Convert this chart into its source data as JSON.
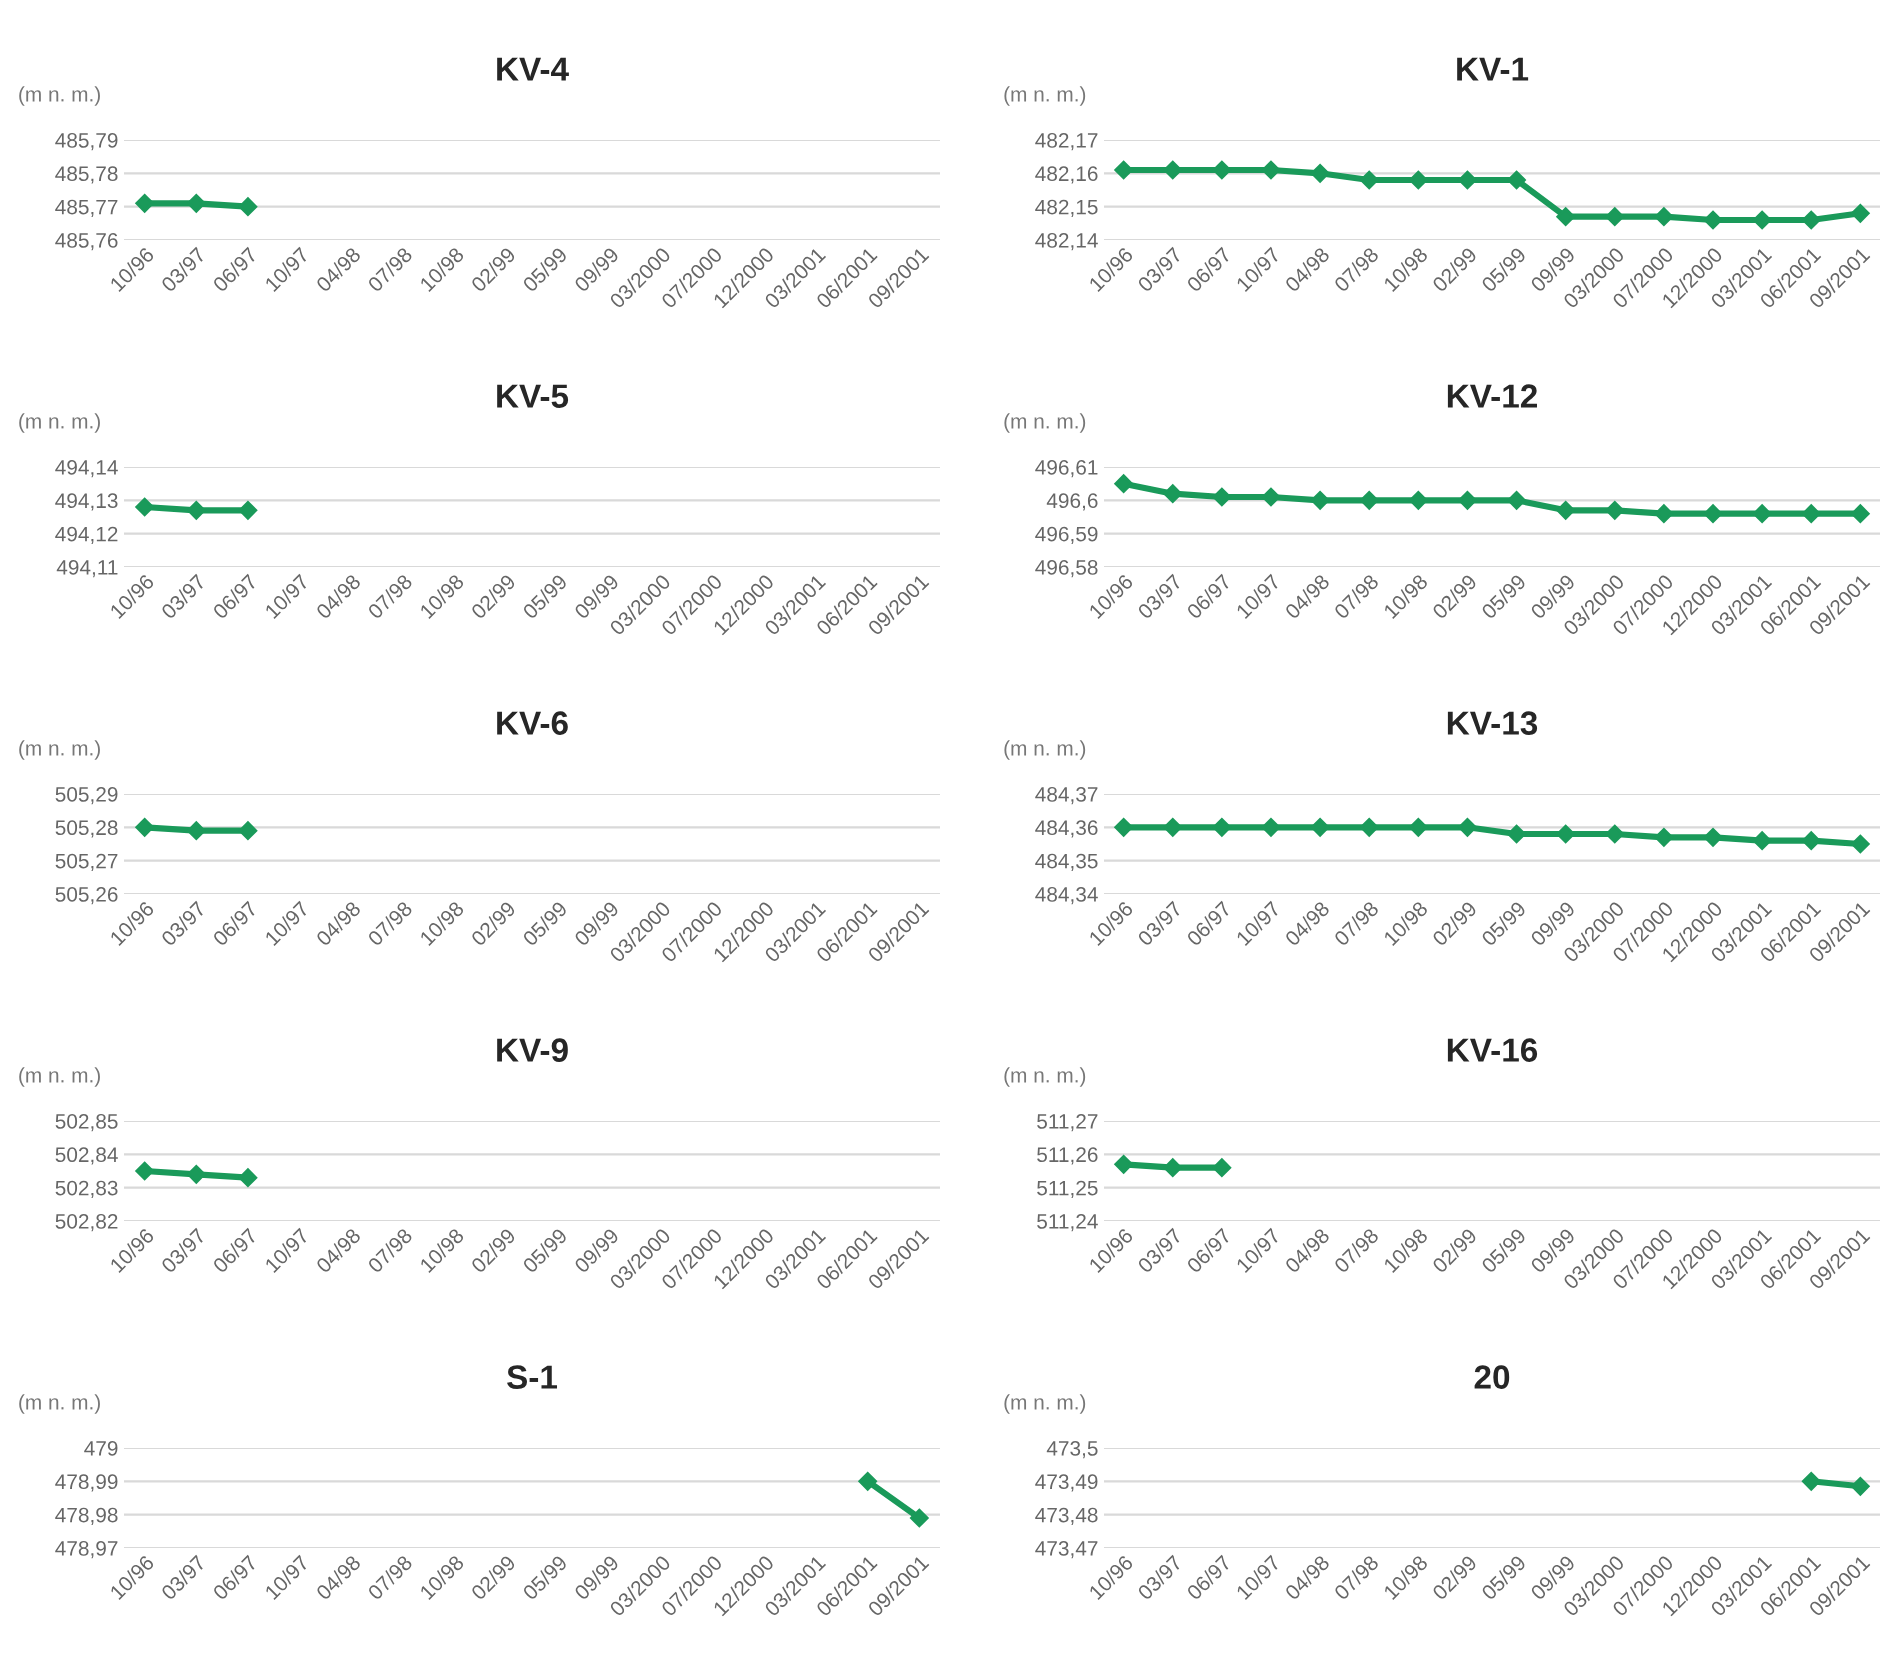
{
  "chart_data": [
    {
      "type": "line",
      "title": "KV-4",
      "ylabel": "(m n. m.)",
      "categories": [
        "10/96",
        "03/97",
        "06/97",
        "10/97",
        "04/98",
        "07/98",
        "10/98",
        "02/99",
        "05/99",
        "09/99",
        "03/2000",
        "07/2000",
        "12/2000",
        "03/2001",
        "06/2001",
        "09/2001"
      ],
      "series": [
        {
          "color": "#1a9a5a",
          "values": [
            485.771,
            485.771,
            485.77,
            null,
            null,
            null,
            null,
            null,
            null,
            null,
            null,
            null,
            null,
            null,
            null,
            null
          ]
        }
      ],
      "ylim": [
        485.76,
        485.79
      ],
      "yticks": [
        {
          "value": 485.76,
          "label": "485,76"
        },
        {
          "value": 485.77,
          "label": "485,77"
        },
        {
          "value": 485.78,
          "label": "485,78"
        },
        {
          "value": 485.79,
          "label": "485,79"
        }
      ],
      "grid": "y",
      "marker": "diamond",
      "line_style": "solid"
    },
    {
      "type": "line",
      "title": "KV-1",
      "ylabel": "(m n. m.)",
      "categories": [
        "10/96",
        "03/97",
        "06/97",
        "10/97",
        "04/98",
        "07/98",
        "10/98",
        "02/99",
        "05/99",
        "09/99",
        "03/2000",
        "07/2000",
        "12/2000",
        "03/2001",
        "06/2001",
        "09/2001"
      ],
      "series": [
        {
          "color": "#1a9a5a",
          "values": [
            482.161,
            482.161,
            482.161,
            482.161,
            482.16,
            482.158,
            482.158,
            482.158,
            482.158,
            482.147,
            482.147,
            482.147,
            482.146,
            482.146,
            482.146,
            482.148
          ]
        }
      ],
      "ylim": [
        482.14,
        482.17
      ],
      "yticks": [
        {
          "value": 482.14,
          "label": "482,14"
        },
        {
          "value": 482.15,
          "label": "482,15"
        },
        {
          "value": 482.16,
          "label": "482,16"
        },
        {
          "value": 482.17,
          "label": "482,17"
        }
      ],
      "grid": "y",
      "marker": "diamond",
      "line_style": "solid"
    },
    {
      "type": "line",
      "title": "KV-5",
      "ylabel": "(m n. m.)",
      "categories": [
        "10/96",
        "03/97",
        "06/97",
        "10/97",
        "04/98",
        "07/98",
        "10/98",
        "02/99",
        "05/99",
        "09/99",
        "03/2000",
        "07/2000",
        "12/2000",
        "03/2001",
        "06/2001",
        "09/2001"
      ],
      "series": [
        {
          "color": "#1a9a5a",
          "values": [
            494.128,
            494.127,
            494.127,
            null,
            null,
            null,
            null,
            null,
            null,
            null,
            null,
            null,
            null,
            null,
            null,
            null
          ]
        }
      ],
      "ylim": [
        494.11,
        494.14
      ],
      "yticks": [
        {
          "value": 494.11,
          "label": "494,11"
        },
        {
          "value": 494.12,
          "label": "494,12"
        },
        {
          "value": 494.13,
          "label": "494,13"
        },
        {
          "value": 494.14,
          "label": "494,14"
        }
      ],
      "grid": "y",
      "marker": "diamond",
      "line_style": "solid"
    },
    {
      "type": "line",
      "title": "KV-12",
      "ylabel": "(m n. m.)",
      "categories": [
        "10/96",
        "03/97",
        "06/97",
        "10/97",
        "04/98",
        "07/98",
        "10/98",
        "02/99",
        "05/99",
        "09/99",
        "03/2000",
        "07/2000",
        "12/2000",
        "03/2001",
        "06/2001",
        "09/2001"
      ],
      "series": [
        {
          "color": "#1a9a5a",
          "values": [
            496.605,
            496.602,
            496.601,
            496.601,
            496.6,
            496.6,
            496.6,
            496.6,
            496.6,
            496.597,
            496.597,
            496.596,
            496.596,
            496.596,
            496.596,
            496.596
          ]
        }
      ],
      "ylim": [
        496.58,
        496.61
      ],
      "yticks": [
        {
          "value": 496.58,
          "label": "496,58"
        },
        {
          "value": 496.59,
          "label": "496,59"
        },
        {
          "value": 496.6,
          "label": "496,6"
        },
        {
          "value": 496.61,
          "label": "496,61"
        }
      ],
      "grid": "y",
      "marker": "diamond",
      "line_style": "solid"
    },
    {
      "type": "line",
      "title": "KV-6",
      "ylabel": "(m n. m.)",
      "categories": [
        "10/96",
        "03/97",
        "06/97",
        "10/97",
        "04/98",
        "07/98",
        "10/98",
        "02/99",
        "05/99",
        "09/99",
        "03/2000",
        "07/2000",
        "12/2000",
        "03/2001",
        "06/2001",
        "09/2001"
      ],
      "series": [
        {
          "color": "#1a9a5a",
          "values": [
            505.28,
            505.279,
            505.279,
            null,
            null,
            null,
            null,
            null,
            null,
            null,
            null,
            null,
            null,
            null,
            null,
            null
          ]
        }
      ],
      "ylim": [
        505.26,
        505.29
      ],
      "yticks": [
        {
          "value": 505.26,
          "label": "505,26"
        },
        {
          "value": 505.27,
          "label": "505,27"
        },
        {
          "value": 505.28,
          "label": "505,28"
        },
        {
          "value": 505.29,
          "label": "505,29"
        }
      ],
      "grid": "y",
      "marker": "diamond",
      "line_style": "solid"
    },
    {
      "type": "line",
      "title": "KV-13",
      "ylabel": "(m n. m.)",
      "categories": [
        "10/96",
        "03/97",
        "06/97",
        "10/97",
        "04/98",
        "07/98",
        "10/98",
        "02/99",
        "05/99",
        "09/99",
        "03/2000",
        "07/2000",
        "12/2000",
        "03/2001",
        "06/2001",
        "09/2001"
      ],
      "series": [
        {
          "color": "#1a9a5a",
          "values": [
            484.36,
            484.36,
            484.36,
            484.36,
            484.36,
            484.36,
            484.36,
            484.36,
            484.358,
            484.358,
            484.358,
            484.357,
            484.357,
            484.356,
            484.356,
            484.355
          ]
        }
      ],
      "ylim": [
        484.34,
        484.37
      ],
      "yticks": [
        {
          "value": 484.34,
          "label": "484,34"
        },
        {
          "value": 484.35,
          "label": "484,35"
        },
        {
          "value": 484.36,
          "label": "484,36"
        },
        {
          "value": 484.37,
          "label": "484,37"
        }
      ],
      "grid": "y",
      "marker": "diamond",
      "line_style": "solid"
    },
    {
      "type": "line",
      "title": "KV-9",
      "ylabel": "(m n. m.)",
      "categories": [
        "10/96",
        "03/97",
        "06/97",
        "10/97",
        "04/98",
        "07/98",
        "10/98",
        "02/99",
        "05/99",
        "09/99",
        "03/2000",
        "07/2000",
        "12/2000",
        "03/2001",
        "06/2001",
        "09/2001"
      ],
      "series": [
        {
          "color": "#1a9a5a",
          "values": [
            502.835,
            502.834,
            502.833,
            null,
            null,
            null,
            null,
            null,
            null,
            null,
            null,
            null,
            null,
            null,
            null,
            null
          ]
        }
      ],
      "ylim": [
        502.82,
        502.85
      ],
      "yticks": [
        {
          "value": 502.82,
          "label": "502,82"
        },
        {
          "value": 502.83,
          "label": "502,83"
        },
        {
          "value": 502.84,
          "label": "502,84"
        },
        {
          "value": 502.85,
          "label": "502,85"
        }
      ],
      "grid": "y",
      "marker": "diamond",
      "line_style": "solid"
    },
    {
      "type": "line",
      "title": "KV-16",
      "ylabel": "(m n. m.)",
      "categories": [
        "10/96",
        "03/97",
        "06/97",
        "10/97",
        "04/98",
        "07/98",
        "10/98",
        "02/99",
        "05/99",
        "09/99",
        "03/2000",
        "07/2000",
        "12/2000",
        "03/2001",
        "06/2001",
        "09/2001"
      ],
      "series": [
        {
          "color": "#1a9a5a",
          "values": [
            511.257,
            511.256,
            511.256,
            null,
            null,
            null,
            null,
            null,
            null,
            null,
            null,
            null,
            null,
            null,
            null,
            null
          ]
        }
      ],
      "ylim": [
        511.24,
        511.27
      ],
      "yticks": [
        {
          "value": 511.24,
          "label": "511,24"
        },
        {
          "value": 511.25,
          "label": "511,25"
        },
        {
          "value": 511.26,
          "label": "511,26"
        },
        {
          "value": 511.27,
          "label": "511,27"
        }
      ],
      "grid": "y",
      "marker": "diamond",
      "line_style": "solid"
    },
    {
      "type": "line",
      "title": "S-1",
      "ylabel": "(m n. m.)",
      "categories": [
        "10/96",
        "03/97",
        "06/97",
        "10/97",
        "04/98",
        "07/98",
        "10/98",
        "02/99",
        "05/99",
        "09/99",
        "03/2000",
        "07/2000",
        "12/2000",
        "03/2001",
        "06/2001",
        "09/2001"
      ],
      "series": [
        {
          "color": "#1a9a5a",
          "values": [
            null,
            null,
            null,
            null,
            null,
            null,
            null,
            null,
            null,
            null,
            null,
            null,
            null,
            null,
            478.99,
            478.979
          ]
        }
      ],
      "ylim": [
        478.97,
        479.0
      ],
      "yticks": [
        {
          "value": 478.97,
          "label": "478,97"
        },
        {
          "value": 478.98,
          "label": "478,98"
        },
        {
          "value": 478.99,
          "label": "478,99"
        },
        479
      ],
      "grid": "y",
      "marker": "diamond",
      "line_style": "solid"
    },
    {
      "type": "line",
      "title": "20",
      "ylabel": "(m n. m.)",
      "categories": [
        "10/96",
        "03/97",
        "06/97",
        "10/97",
        "04/98",
        "07/98",
        "10/98",
        "02/99",
        "05/99",
        "09/99",
        "03/2000",
        "07/2000",
        "12/2000",
        "03/2001",
        "06/2001",
        "09/2001"
      ],
      "series": [
        {
          "color": "#1a9a5a",
          "values": [
            null,
            null,
            null,
            null,
            null,
            null,
            null,
            null,
            null,
            null,
            null,
            null,
            null,
            null,
            473.49,
            473.4885
          ]
        }
      ],
      "ylim": [
        473.47,
        473.5
      ],
      "yticks": [
        {
          "value": 473.47,
          "label": "473,47"
        },
        {
          "value": 473.48,
          "label": "473,48"
        },
        {
          "value": 473.49,
          "label": "473,49"
        },
        {
          "value": 473.5,
          "label": "473,5"
        }
      ],
      "grid": "y",
      "marker": "diamond",
      "line_style": "solid"
    }
  ]
}
